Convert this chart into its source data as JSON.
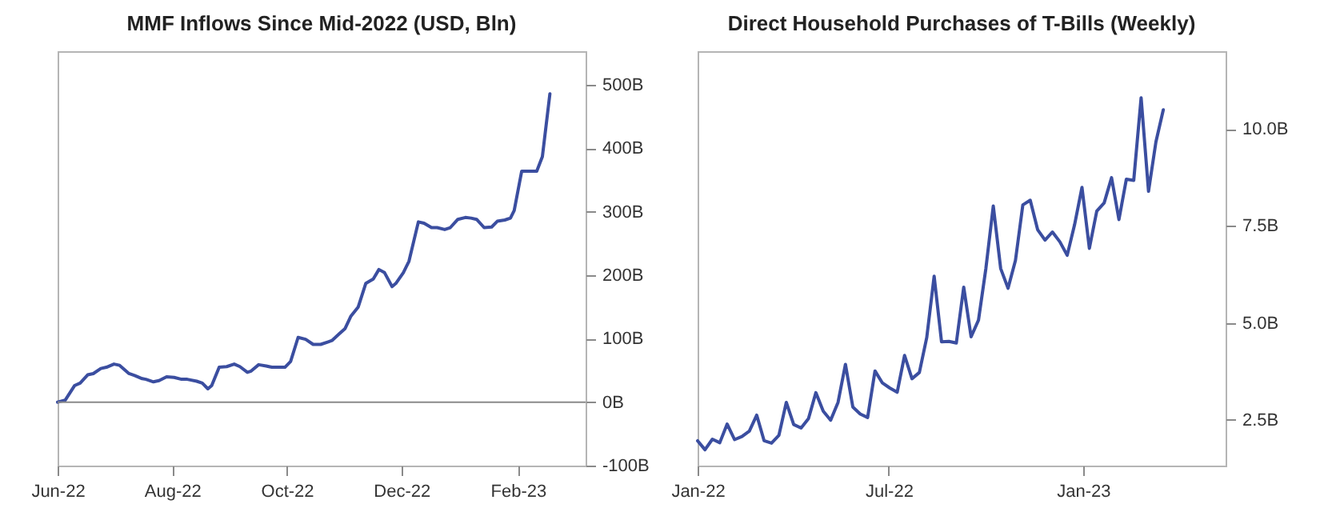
{
  "chart_data": [
    {
      "type": "line",
      "title": "MMF Inflows Since Mid-2022 (USD, Bln)",
      "x": [
        "2022-06-01",
        "2022-06-05",
        "2022-06-10",
        "2022-06-13",
        "2022-06-17",
        "2022-06-20",
        "2022-06-24",
        "2022-06-27",
        "2022-07-01",
        "2022-07-04",
        "2022-07-09",
        "2022-07-12",
        "2022-07-16",
        "2022-07-18",
        "2022-07-22",
        "2022-07-25",
        "2022-07-29",
        "2022-08-02",
        "2022-08-06",
        "2022-08-09",
        "2022-08-14",
        "2022-08-17",
        "2022-08-20",
        "2022-08-22",
        "2022-08-26",
        "2022-08-30",
        "2022-09-03",
        "2022-09-06",
        "2022-09-10",
        "2022-09-12",
        "2022-09-16",
        "2022-09-20",
        "2022-09-23",
        "2022-09-30",
        "2022-10-03",
        "2022-10-07",
        "2022-10-11",
        "2022-10-15",
        "2022-10-19",
        "2022-10-23",
        "2022-10-25",
        "2022-10-29",
        "2022-11-01",
        "2022-11-04",
        "2022-11-08",
        "2022-11-12",
        "2022-11-16",
        "2022-11-19",
        "2022-11-22",
        "2022-11-26",
        "2022-11-28",
        "2022-12-02",
        "2022-12-05",
        "2022-12-10",
        "2022-12-13",
        "2022-12-17",
        "2022-12-20",
        "2022-12-24",
        "2022-12-27",
        "2022-12-31",
        "2023-01-04",
        "2023-01-07",
        "2023-01-10",
        "2023-01-14",
        "2023-01-18",
        "2023-01-21",
        "2023-01-25",
        "2023-01-28",
        "2023-01-30",
        "2023-02-03",
        "2023-02-06",
        "2023-02-11",
        "2023-02-14",
        "2023-02-18"
      ],
      "series": [
        {
          "color": "#3b4ea0",
          "values": [
            0,
            3,
            26,
            30,
            43,
            45,
            53,
            55,
            60,
            58,
            45,
            42,
            37,
            36,
            32,
            34,
            40,
            39,
            36,
            36,
            33,
            30,
            21,
            26,
            55,
            56,
            60,
            56,
            47,
            49,
            59,
            57,
            55,
            55,
            64,
            102,
            99,
            91,
            91,
            95,
            97,
            108,
            116,
            135,
            150,
            187,
            194,
            209,
            204,
            182,
            187,
            204,
            222,
            284,
            282,
            275,
            275,
            272,
            275,
            288,
            291,
            290,
            288,
            275,
            276,
            285,
            287,
            290,
            302,
            364,
            364,
            364,
            387,
            486
          ]
        }
      ],
      "xlim": [
        "2022-06-01",
        "2023-03-09"
      ],
      "xticks": [
        {
          "value": "2022-06-01",
          "label": "Jun-22"
        },
        {
          "value": "2022-08-01",
          "label": "Aug-22"
        },
        {
          "value": "2022-10-01",
          "label": "Oct-22"
        },
        {
          "value": "2022-12-01",
          "label": "Dec-22"
        },
        {
          "value": "2023-02-01",
          "label": "Feb-23"
        }
      ],
      "ylim": [
        -100,
        553
      ],
      "yticks": [
        {
          "value": -100,
          "label": "-100B"
        },
        {
          "value": 0,
          "label": "0B"
        },
        {
          "value": 100,
          "label": "100B"
        },
        {
          "value": 200,
          "label": "200B"
        },
        {
          "value": 300,
          "label": "300B"
        },
        {
          "value": 400,
          "label": "400B"
        },
        {
          "value": 500,
          "label": "500B"
        }
      ],
      "ref_lines": [
        {
          "axis": "y",
          "value": 0,
          "color": "#8a8a8a"
        }
      ]
    },
    {
      "type": "line",
      "title": "Direct Household Purchases of T-Bills (Weekly)",
      "x": [
        "2022-01-01",
        "2022-01-08",
        "2022-01-15",
        "2022-01-22",
        "2022-01-29",
        "2022-02-05",
        "2022-02-12",
        "2022-02-19",
        "2022-02-26",
        "2022-03-05",
        "2022-03-12",
        "2022-03-19",
        "2022-03-26",
        "2022-04-02",
        "2022-04-09",
        "2022-04-16",
        "2022-04-23",
        "2022-04-30",
        "2022-05-07",
        "2022-05-14",
        "2022-05-21",
        "2022-05-28",
        "2022-06-04",
        "2022-06-11",
        "2022-06-18",
        "2022-06-25",
        "2022-07-02",
        "2022-07-09",
        "2022-07-16",
        "2022-07-23",
        "2022-07-30",
        "2022-08-06",
        "2022-08-13",
        "2022-08-20",
        "2022-08-27",
        "2022-09-03",
        "2022-09-10",
        "2022-09-17",
        "2022-09-24",
        "2022-10-01",
        "2022-10-08",
        "2022-10-15",
        "2022-10-22",
        "2022-10-29",
        "2022-11-05",
        "2022-11-12",
        "2022-11-19",
        "2022-11-26",
        "2022-12-03",
        "2022-12-10",
        "2022-12-17",
        "2022-12-24",
        "2022-12-31",
        "2023-01-07",
        "2023-01-14",
        "2023-01-21",
        "2023-01-28",
        "2023-02-04",
        "2023-02-11",
        "2023-02-18",
        "2023-02-25",
        "2023-03-04",
        "2023-03-11",
        "2023-03-18"
      ],
      "series": [
        {
          "color": "#3b4ea0",
          "values": [
            1.96,
            1.73,
            2.0,
            1.91,
            2.39,
            1.99,
            2.07,
            2.21,
            2.62,
            1.96,
            1.9,
            2.1,
            2.95,
            2.38,
            2.29,
            2.53,
            3.2,
            2.72,
            2.49,
            2.95,
            3.93,
            2.83,
            2.65,
            2.56,
            3.76,
            3.45,
            3.32,
            3.21,
            4.16,
            3.56,
            3.72,
            4.62,
            6.2,
            4.51,
            4.52,
            4.48,
            5.92,
            4.64,
            5.07,
            6.4,
            8.01,
            6.4,
            5.89,
            6.61,
            8.04,
            8.16,
            7.4,
            7.13,
            7.34,
            7.09,
            6.74,
            7.53,
            8.49,
            6.92,
            7.88,
            8.09,
            8.74,
            7.66,
            8.7,
            8.67,
            10.8,
            8.39,
            9.66,
            10.49
          ]
        }
      ],
      "xlim": [
        "2022-01-01",
        "2023-05-16"
      ],
      "xticks": [
        {
          "value": "2022-01-01",
          "label": "Jan-22"
        },
        {
          "value": "2022-07-01",
          "label": "Jul-22"
        },
        {
          "value": "2023-01-01",
          "label": "Jan-23"
        }
      ],
      "ylim": [
        1.32,
        12
      ],
      "yticks": [
        {
          "value": 2.5,
          "label": "2.5B"
        },
        {
          "value": 5,
          "label": "5.0B"
        },
        {
          "value": 7.5,
          "label": "7.5B"
        },
        {
          "value": 10,
          "label": "10.0B"
        }
      ]
    }
  ]
}
